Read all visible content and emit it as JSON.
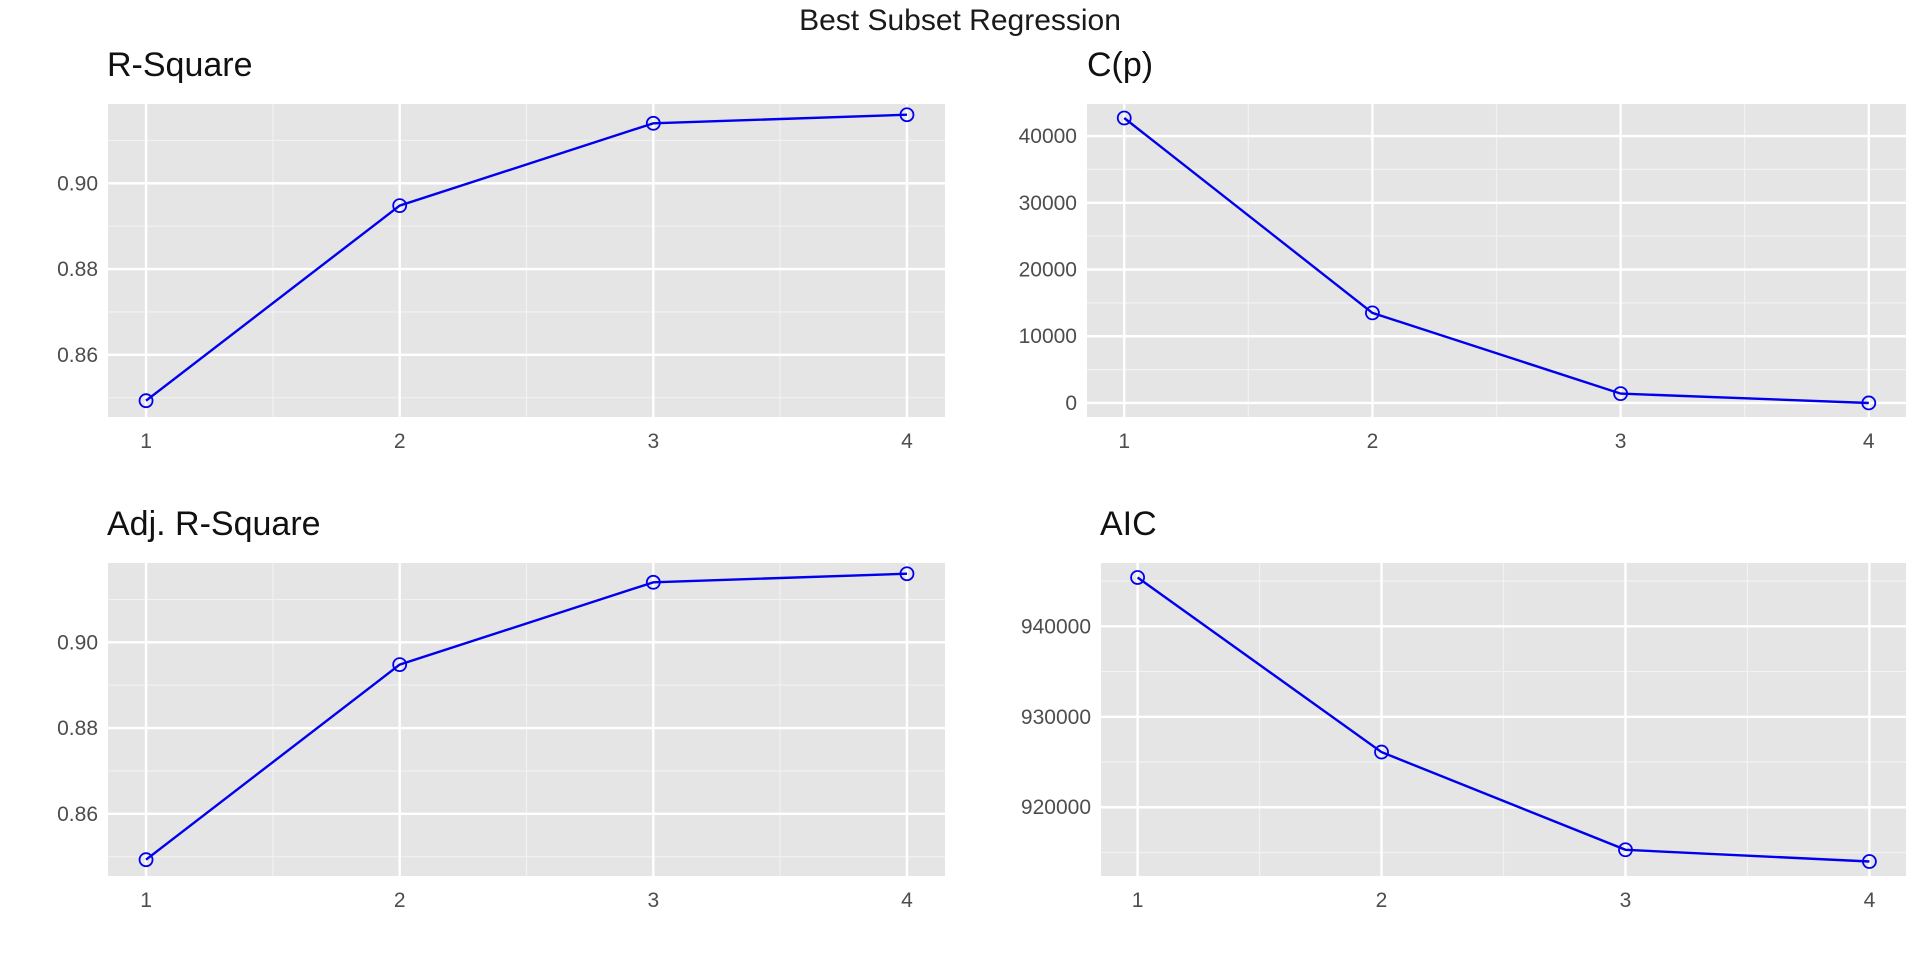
{
  "title": "Best Subset Regression",
  "chart_data": [
    {
      "type": "line",
      "title": "R-Square",
      "x": [
        1,
        2,
        3,
        4
      ],
      "series": [
        {
          "values": [
            0.8493,
            0.8948,
            0.914,
            0.916
          ]
        }
      ],
      "xlim": [
        0.85,
        4.15
      ],
      "ylim": [
        0.8455,
        0.9185
      ],
      "xticks": [
        "1",
        "2",
        "3",
        "4"
      ],
      "yticks": [
        "0.86",
        "0.88",
        "0.90"
      ],
      "ytick_values": [
        0.86,
        0.88,
        0.9
      ],
      "line_color": "#0000ee",
      "grid": true
    },
    {
      "type": "line",
      "title": "C(p)",
      "x": [
        1,
        2,
        3,
        4
      ],
      "series": [
        {
          "values": [
            42700,
            13500,
            1400,
            5
          ]
        }
      ],
      "xlim": [
        0.85,
        4.15
      ],
      "ylim": [
        -2100,
        44800
      ],
      "xticks": [
        "1",
        "2",
        "3",
        "4"
      ],
      "yticks": [
        "0",
        "10000",
        "20000",
        "30000",
        "40000"
      ],
      "ytick_values": [
        0,
        10000,
        20000,
        30000,
        40000
      ],
      "line_color": "#0000ee",
      "grid": true
    },
    {
      "type": "line",
      "title": "Adj. R-Square",
      "x": [
        1,
        2,
        3,
        4
      ],
      "series": [
        {
          "values": [
            0.8493,
            0.8948,
            0.914,
            0.916
          ]
        }
      ],
      "xlim": [
        0.85,
        4.15
      ],
      "ylim": [
        0.8455,
        0.9185
      ],
      "xticks": [
        "1",
        "2",
        "3",
        "4"
      ],
      "yticks": [
        "0.86",
        "0.88",
        "0.90"
      ],
      "ytick_values": [
        0.86,
        0.88,
        0.9
      ],
      "line_color": "#0000ee",
      "grid": true
    },
    {
      "type": "line",
      "title": "AIC",
      "x": [
        1,
        2,
        3,
        4
      ],
      "series": [
        {
          "values": [
            945400,
            926100,
            915300,
            914000
          ]
        }
      ],
      "xlim": [
        0.85,
        4.15
      ],
      "ylim": [
        912400,
        947000
      ],
      "xticks": [
        "1",
        "2",
        "3",
        "4"
      ],
      "yticks": [
        "920000",
        "930000",
        "940000"
      ],
      "ytick_values": [
        920000,
        930000,
        940000
      ],
      "line_color": "#0000ee",
      "grid": true
    }
  ]
}
